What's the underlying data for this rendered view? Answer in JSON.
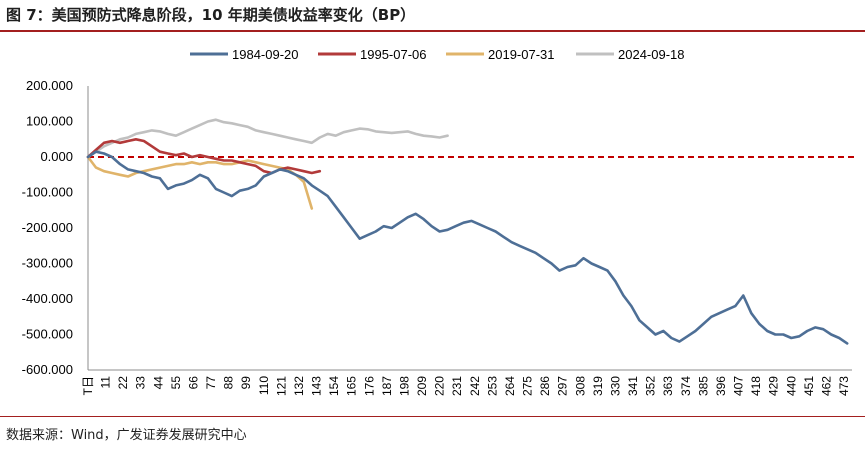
{
  "title": "图 7：美国预防式降息阶段，10 年期美债收益率变化（BP）",
  "source": "数据来源：Wind，广发证券发展研究中心",
  "chart_data": {
    "type": "line",
    "ylim": [
      -600,
      200
    ],
    "yticks": [
      200,
      100,
      0,
      -100,
      -200,
      -300,
      -400,
      -500,
      -600
    ],
    "ytick_labels": [
      "200.000",
      "100.000",
      "0.000",
      "-100.000",
      "-200.000",
      "-300.000",
      "-400.000",
      "-500.000",
      "-600.000"
    ],
    "x_max": 478,
    "x_ticks": [
      {
        "label": "T日",
        "x": 0
      },
      {
        "label": "11",
        "x": 11
      },
      {
        "label": "22",
        "x": 22
      },
      {
        "label": "33",
        "x": 33
      },
      {
        "label": "44",
        "x": 44
      },
      {
        "label": "55",
        "x": 55
      },
      {
        "label": "66",
        "x": 66
      },
      {
        "label": "77",
        "x": 77
      },
      {
        "label": "88",
        "x": 88
      },
      {
        "label": "99",
        "x": 99
      },
      {
        "label": "110",
        "x": 110
      },
      {
        "label": "121",
        "x": 121
      },
      {
        "label": "132",
        "x": 132
      },
      {
        "label": "143",
        "x": 143
      },
      {
        "label": "154",
        "x": 154
      },
      {
        "label": "165",
        "x": 165
      },
      {
        "label": "176",
        "x": 176
      },
      {
        "label": "187",
        "x": 187
      },
      {
        "label": "198",
        "x": 198
      },
      {
        "label": "209",
        "x": 209
      },
      {
        "label": "220",
        "x": 220
      },
      {
        "label": "231",
        "x": 231
      },
      {
        "label": "242",
        "x": 242
      },
      {
        "label": "253",
        "x": 253
      },
      {
        "label": "264",
        "x": 264
      },
      {
        "label": "275",
        "x": 275
      },
      {
        "label": "286",
        "x": 286
      },
      {
        "label": "297",
        "x": 297
      },
      {
        "label": "308",
        "x": 308
      },
      {
        "label": "319",
        "x": 319
      },
      {
        "label": "330",
        "x": 330
      },
      {
        "label": "341",
        "x": 341
      },
      {
        "label": "352",
        "x": 352
      },
      {
        "label": "363",
        "x": 363
      },
      {
        "label": "374",
        "x": 374
      },
      {
        "label": "385",
        "x": 385
      },
      {
        "label": "396",
        "x": 396
      },
      {
        "label": "407",
        "x": 407
      },
      {
        "label": "418",
        "x": 418
      },
      {
        "label": "429",
        "x": 429
      },
      {
        "label": "440",
        "x": 440
      },
      {
        "label": "451",
        "x": 451
      },
      {
        "label": "462",
        "x": 462
      },
      {
        "label": "473",
        "x": 473
      }
    ],
    "reference_line": {
      "y": 0,
      "color": "#c00000",
      "style": "dashed"
    },
    "series": [
      {
        "name": "1984-09-20",
        "color": "#4e6f96",
        "x": [
          0,
          5,
          10,
          15,
          20,
          25,
          30,
          35,
          40,
          45,
          50,
          55,
          60,
          65,
          70,
          75,
          80,
          85,
          90,
          95,
          100,
          105,
          110,
          115,
          120,
          125,
          130,
          135,
          140,
          145,
          150,
          155,
          160,
          165,
          170,
          175,
          180,
          185,
          190,
          195,
          200,
          205,
          210,
          215,
          220,
          225,
          230,
          235,
          240,
          245,
          250,
          255,
          260,
          265,
          270,
          275,
          280,
          285,
          290,
          295,
          300,
          305,
          310,
          315,
          320,
          325,
          330,
          335,
          340,
          345,
          350,
          355,
          360,
          365,
          370,
          375,
          380,
          385,
          390,
          395,
          400,
          405,
          410,
          415,
          420,
          425,
          430,
          435,
          440,
          445,
          450,
          455,
          460,
          465,
          470,
          475
        ],
        "values": [
          0,
          15,
          10,
          0,
          -20,
          -35,
          -40,
          -45,
          -55,
          -60,
          -90,
          -80,
          -75,
          -65,
          -50,
          -60,
          -90,
          -100,
          -110,
          -95,
          -90,
          -80,
          -55,
          -45,
          -35,
          -40,
          -50,
          -60,
          -80,
          -95,
          -110,
          -140,
          -170,
          -200,
          -230,
          -220,
          -210,
          -195,
          -200,
          -185,
          -170,
          -160,
          -175,
          -195,
          -210,
          -205,
          -195,
          -185,
          -180,
          -190,
          -200,
          -210,
          -225,
          -240,
          -250,
          -260,
          -270,
          -285,
          -300,
          -320,
          -310,
          -305,
          -285,
          -300,
          -310,
          -320,
          -350,
          -390,
          -420,
          -460,
          -480,
          -500,
          -490,
          -510,
          -520,
          -505,
          -490,
          -470,
          -450,
          -440,
          -430,
          -420,
          -390,
          -440,
          -470,
          -490,
          -500,
          -500,
          -510,
          -505,
          -490,
          -480,
          -485,
          -500,
          -510,
          -525
        ]
      },
      {
        "name": "1995-07-06",
        "color": "#b23a3a",
        "x": [
          0,
          5,
          10,
          15,
          20,
          25,
          30,
          35,
          40,
          45,
          50,
          55,
          60,
          65,
          70,
          75,
          80,
          85,
          90,
          95,
          100,
          105,
          110,
          115,
          120,
          125,
          130,
          135,
          140,
          145
        ],
        "values": [
          0,
          20,
          40,
          45,
          40,
          45,
          50,
          45,
          30,
          15,
          10,
          5,
          10,
          0,
          5,
          0,
          -5,
          -10,
          -10,
          -15,
          -20,
          -25,
          -40,
          -45,
          -35,
          -30,
          -35,
          -40,
          -45,
          -40
        ]
      },
      {
        "name": "2019-07-31",
        "color": "#e0b46a",
        "x": [
          0,
          5,
          10,
          15,
          20,
          25,
          30,
          35,
          40,
          45,
          50,
          55,
          60,
          65,
          70,
          75,
          80,
          85,
          90,
          95,
          100,
          105,
          110,
          115,
          120,
          125,
          130,
          135,
          140
        ],
        "values": [
          0,
          -30,
          -40,
          -45,
          -50,
          -55,
          -45,
          -40,
          -35,
          -30,
          -25,
          -20,
          -20,
          -15,
          -20,
          -15,
          -15,
          -20,
          -20,
          -15,
          -10,
          -15,
          -20,
          -25,
          -30,
          -35,
          -50,
          -70,
          -145
        ]
      },
      {
        "name": "2024-09-18",
        "color": "#c0c0c0",
        "x": [
          0,
          5,
          10,
          15,
          20,
          25,
          30,
          35,
          40,
          45,
          50,
          55,
          60,
          65,
          70,
          75,
          80,
          85,
          90,
          95,
          100,
          105,
          110,
          115,
          120,
          125,
          130,
          135,
          140,
          145,
          150,
          155,
          160,
          165,
          170,
          175,
          180,
          185,
          190,
          195,
          200,
          205,
          210,
          215,
          220,
          225
        ],
        "values": [
          0,
          15,
          30,
          40,
          50,
          55,
          65,
          70,
          75,
          72,
          65,
          60,
          70,
          80,
          90,
          100,
          105,
          98,
          95,
          90,
          85,
          75,
          70,
          65,
          60,
          55,
          50,
          45,
          40,
          55,
          65,
          60,
          70,
          75,
          80,
          78,
          72,
          70,
          68,
          70,
          72,
          65,
          60,
          58,
          55,
          60
        ]
      }
    ]
  }
}
